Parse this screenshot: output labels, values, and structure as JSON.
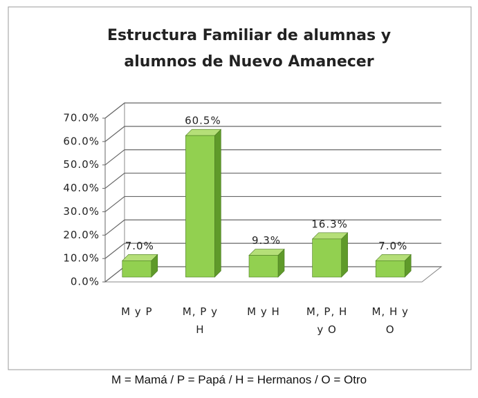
{
  "chart_data": {
    "type": "bar",
    "title": "Estructura Familiar de alumnas y alumnos de Nuevo Amanecer",
    "categories": [
      "M y P",
      "M, P y H",
      "M y H",
      "M, P, H y O",
      "M, H y O"
    ],
    "values": [
      7.0,
      60.5,
      9.3,
      16.3,
      7.0
    ],
    "value_labels": [
      "7.0%",
      "60.5%",
      "9.3%",
      "16.3%",
      "7.0%"
    ],
    "color": "#92d050",
    "ylim": [
      0,
      70
    ],
    "yticks": [
      {
        "value": 0,
        "label": "0.0%"
      },
      {
        "value": 10,
        "label": "10.0%"
      },
      {
        "value": 20,
        "label": "20.0%"
      },
      {
        "value": 30,
        "label": "30.0%"
      },
      {
        "value": 40,
        "label": "40.0%"
      },
      {
        "value": 50,
        "label": "50.0%"
      },
      {
        "value": 60,
        "label": "60.0%"
      },
      {
        "value": 70,
        "label": "70.0%"
      }
    ],
    "grid": true
  },
  "caption": "M = Mamá  /  P = Papá  /  H = Hermanos  /  O = Otro"
}
